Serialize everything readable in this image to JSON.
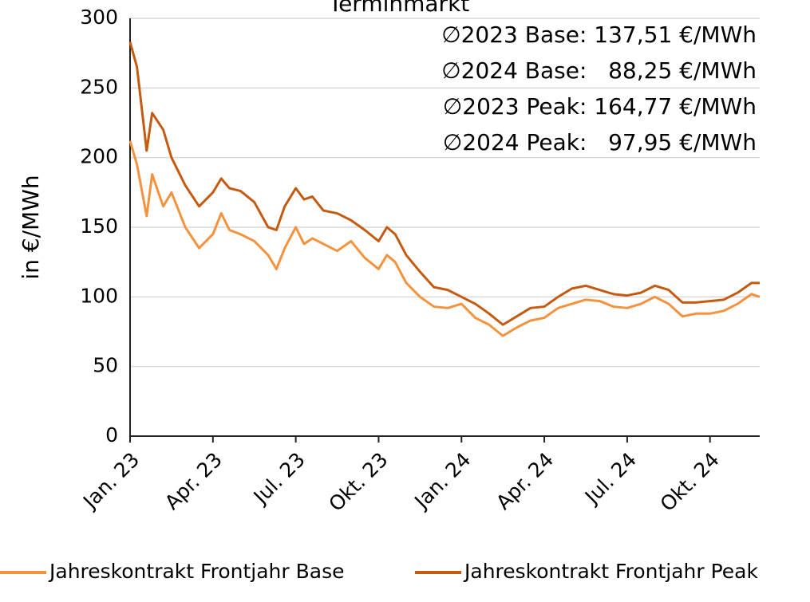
{
  "chart_data": {
    "type": "line",
    "title": "Terminmarkt",
    "y_label": "in €/MWh",
    "x": [
      0,
      0.25,
      0.6,
      0.8,
      1.2,
      1.5,
      2,
      2.5,
      3,
      3.3,
      3.6,
      4,
      4.5,
      5,
      5.3,
      5.6,
      6,
      6.3,
      6.6,
      7,
      7.5,
      8,
      8.5,
      9,
      9.3,
      9.6,
      10,
      10.5,
      11,
      11.5,
      12,
      12.5,
      13,
      13.5,
      14,
      14.5,
      15,
      15.5,
      16,
      16.5,
      17,
      17.5,
      18,
      18.5,
      19,
      19.5,
      20,
      20.5,
      21,
      21.5,
      22,
      22.5,
      22.8
    ],
    "series": [
      {
        "name": "Jahreskontrakt Frontjahr Base",
        "color": "#f5923e",
        "values": [
          212,
          195,
          158,
          188,
          165,
          175,
          150,
          135,
          145,
          160,
          148,
          145,
          140,
          130,
          120,
          135,
          150,
          138,
          142,
          138,
          133,
          140,
          128,
          120,
          130,
          125,
          110,
          100,
          93,
          92,
          95,
          85,
          80,
          72,
          78,
          83,
          85,
          92,
          95,
          98,
          97,
          93,
          92,
          95,
          100,
          95,
          86,
          88,
          88,
          90,
          95,
          102,
          100
        ]
      },
      {
        "name": "Jahreskontrakt Frontjahr Peak",
        "color": "#c55a11",
        "values": [
          283,
          265,
          205,
          232,
          220,
          200,
          180,
          165,
          175,
          185,
          178,
          176,
          168,
          150,
          148,
          165,
          178,
          170,
          172,
          162,
          160,
          155,
          148,
          140,
          150,
          145,
          130,
          118,
          107,
          105,
          100,
          95,
          88,
          80,
          86,
          92,
          93,
          100,
          106,
          108,
          105,
          102,
          101,
          103,
          108,
          105,
          96,
          96,
          97,
          98,
          103,
          110,
          110
        ]
      }
    ],
    "annotations": [
      {
        "text": "∅2023 Base: 137,51 €/MWh",
        "color": "#f5923e"
      },
      {
        "text": "∅2024 Base:   88,25 €/MWh",
        "color": "#f5923e"
      },
      {
        "text": "∅2023 Peak: 164,77 €/MWh",
        "color": "#c55a11"
      },
      {
        "text": "∅2024 Peak:   97,95 €/MWh",
        "color": "#c55a11"
      }
    ],
    "xlim": [
      0,
      22.8
    ],
    "xticks": [
      {
        "value": 0,
        "label": "Jan. 23"
      },
      {
        "value": 3,
        "label": "Apr. 23"
      },
      {
        "value": 6,
        "label": "Jul. 23"
      },
      {
        "value": 9,
        "label": "Okt. 23"
      },
      {
        "value": 12,
        "label": "Jan. 24"
      },
      {
        "value": 15,
        "label": "Apr. 24"
      },
      {
        "value": 18,
        "label": "Jul. 24"
      },
      {
        "value": 21,
        "label": "Okt. 24"
      }
    ],
    "ylim": [
      0,
      300
    ],
    "yticks": [
      0,
      50,
      100,
      150,
      200,
      250,
      300
    ],
    "grid": true,
    "legend": "bottom"
  }
}
